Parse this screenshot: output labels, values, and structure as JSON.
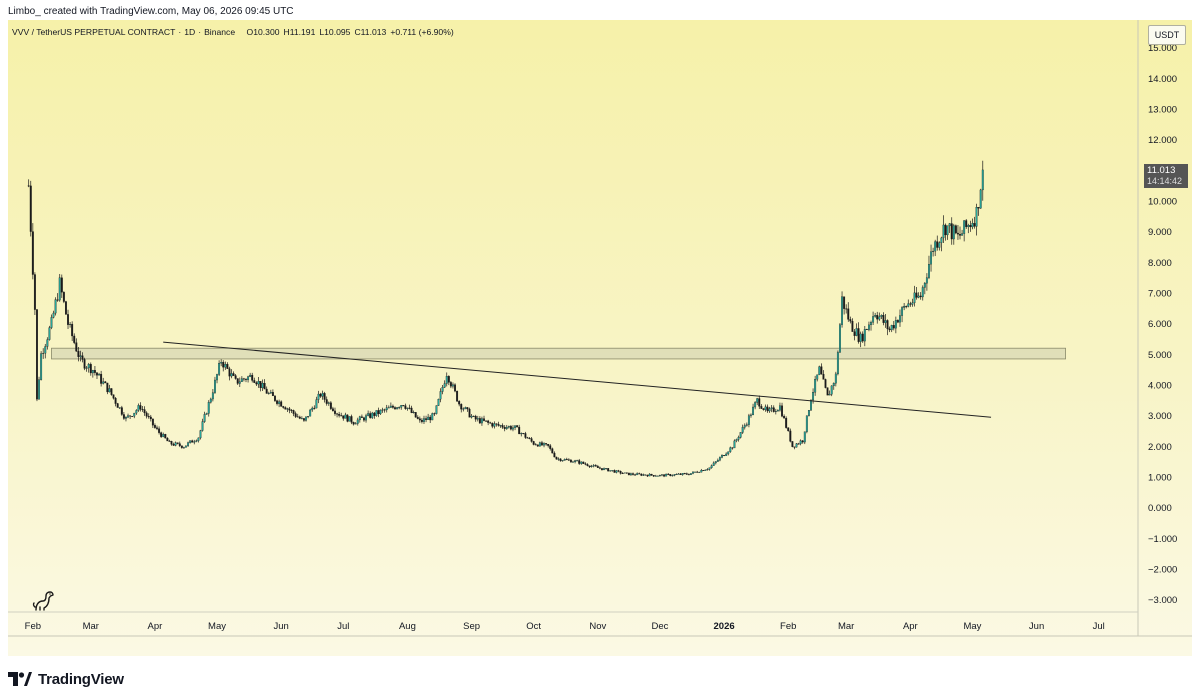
{
  "header": {
    "attribution": "Limbo_ created with TradingView.com, May 06, 2026 09:45 UTC"
  },
  "symbol_line": {
    "name": "VVV / TetherUS PERPETUAL CONTRACT",
    "interval": "1D",
    "exchange": "Binance",
    "open": "O10.300",
    "high": "H11.191",
    "low": "L10.095",
    "close": "C11.013",
    "change": "+0.711 (+6.90%)"
  },
  "currency": "USDT",
  "price_tag": {
    "price": "11.013",
    "countdown": "14:14:42"
  },
  "footer": {
    "brand": "TradingView"
  },
  "colors": {
    "up_candle": "#26a69a",
    "candle_outline": "#1a1a1a",
    "trendline": "#222222",
    "zone_fill": "#d8d8b4",
    "zone_stroke": "#8a8a6a",
    "text": "#131722"
  },
  "icons": {
    "mascot": "dinosaur-icon",
    "logo": "tradingview-logo-icon"
  },
  "chart_data": {
    "type": "candlestick",
    "title": "",
    "xlabel": "",
    "ylabel": "",
    "ylim": [
      -3.4,
      15.9
    ],
    "y_ticks": [
      15,
      14,
      13,
      12,
      11,
      10,
      9,
      8,
      7,
      6,
      5,
      4,
      3,
      2,
      1,
      0,
      -1,
      -2,
      -3
    ],
    "y_tick_labels": [
      "15.000",
      "14.000",
      "13.000",
      "12.000",
      "11.000",
      "10.000",
      "9.000",
      "8.000",
      "7.000",
      "6.000",
      "5.000",
      "4.000",
      "3.000",
      "2.000",
      "1.000",
      "0.000",
      "−1.000",
      "−2.000",
      "−3.000"
    ],
    "x_range": [
      "2025-01-20",
      "2026-07-20"
    ],
    "x_ticks": [
      {
        "label": "Feb",
        "date": "2025-02-01"
      },
      {
        "label": "Mar",
        "date": "2025-03-01"
      },
      {
        "label": "Apr",
        "date": "2025-04-01"
      },
      {
        "label": "May",
        "date": "2025-05-01"
      },
      {
        "label": "Jun",
        "date": "2025-06-01"
      },
      {
        "label": "Jul",
        "date": "2025-07-01"
      },
      {
        "label": "Aug",
        "date": "2025-08-01"
      },
      {
        "label": "Sep",
        "date": "2025-09-01"
      },
      {
        "label": "Oct",
        "date": "2025-10-01"
      },
      {
        "label": "Nov",
        "date": "2025-11-01"
      },
      {
        "label": "Dec",
        "date": "2025-12-01"
      },
      {
        "label": "2026",
        "date": "2026-01-01",
        "bold": true
      },
      {
        "label": "Feb",
        "date": "2026-02-01"
      },
      {
        "label": "Mar",
        "date": "2026-03-01"
      },
      {
        "label": "Apr",
        "date": "2026-04-01"
      },
      {
        "label": "May",
        "date": "2026-05-01"
      },
      {
        "label": "Jun",
        "date": "2026-06-01"
      },
      {
        "label": "Jul",
        "date": "2026-07-01"
      }
    ],
    "grid": false,
    "price_path": [
      {
        "date": "2025-01-30",
        "price": 10.5
      },
      {
        "date": "2025-02-02",
        "price": 6.5
      },
      {
        "date": "2025-02-03",
        "price": 3.5
      },
      {
        "date": "2025-02-05",
        "price": 5.0
      },
      {
        "date": "2025-02-10",
        "price": 6.0
      },
      {
        "date": "2025-02-14",
        "price": 7.3
      },
      {
        "date": "2025-02-18",
        "price": 6.0
      },
      {
        "date": "2025-02-24",
        "price": 4.8
      },
      {
        "date": "2025-03-02",
        "price": 4.5
      },
      {
        "date": "2025-03-10",
        "price": 3.8
      },
      {
        "date": "2025-03-18",
        "price": 2.9
      },
      {
        "date": "2025-03-25",
        "price": 3.3
      },
      {
        "date": "2025-04-01",
        "price": 2.6
      },
      {
        "date": "2025-04-08",
        "price": 2.1
      },
      {
        "date": "2025-04-15",
        "price": 2.0
      },
      {
        "date": "2025-04-22",
        "price": 2.3
      },
      {
        "date": "2025-04-28",
        "price": 3.6
      },
      {
        "date": "2025-05-03",
        "price": 4.8
      },
      {
        "date": "2025-05-10",
        "price": 4.1
      },
      {
        "date": "2025-05-18",
        "price": 4.3
      },
      {
        "date": "2025-05-26",
        "price": 3.7
      },
      {
        "date": "2025-06-03",
        "price": 3.3
      },
      {
        "date": "2025-06-12",
        "price": 2.8
      },
      {
        "date": "2025-06-20",
        "price": 3.7
      },
      {
        "date": "2025-06-28",
        "price": 3.1
      },
      {
        "date": "2025-07-06",
        "price": 2.8
      },
      {
        "date": "2025-07-14",
        "price": 3.0
      },
      {
        "date": "2025-07-22",
        "price": 3.2
      },
      {
        "date": "2025-07-30",
        "price": 3.4
      },
      {
        "date": "2025-08-07",
        "price": 2.8
      },
      {
        "date": "2025-08-14",
        "price": 3.0
      },
      {
        "date": "2025-08-20",
        "price": 4.4
      },
      {
        "date": "2025-08-26",
        "price": 3.4
      },
      {
        "date": "2025-09-02",
        "price": 2.9
      },
      {
        "date": "2025-09-12",
        "price": 2.7
      },
      {
        "date": "2025-09-22",
        "price": 2.6
      },
      {
        "date": "2025-10-01",
        "price": 2.1
      },
      {
        "date": "2025-10-08",
        "price": 2.0
      },
      {
        "date": "2025-10-12",
        "price": 1.6
      },
      {
        "date": "2025-10-22",
        "price": 1.5
      },
      {
        "date": "2025-11-01",
        "price": 1.3
      },
      {
        "date": "2025-11-15",
        "price": 1.1
      },
      {
        "date": "2025-12-01",
        "price": 1.05
      },
      {
        "date": "2025-12-15",
        "price": 1.1
      },
      {
        "date": "2025-12-25",
        "price": 1.3
      },
      {
        "date": "2026-01-05",
        "price": 2.0
      },
      {
        "date": "2026-01-12",
        "price": 2.8
      },
      {
        "date": "2026-01-17",
        "price": 3.5
      },
      {
        "date": "2026-01-22",
        "price": 3.1
      },
      {
        "date": "2026-01-28",
        "price": 3.3
      },
      {
        "date": "2026-02-03",
        "price": 2.0
      },
      {
        "date": "2026-02-08",
        "price": 2.2
      },
      {
        "date": "2026-02-12",
        "price": 3.6
      },
      {
        "date": "2026-02-16",
        "price": 4.5
      },
      {
        "date": "2026-02-20",
        "price": 3.6
      },
      {
        "date": "2026-02-24",
        "price": 4.3
      },
      {
        "date": "2026-02-27",
        "price": 6.8
      },
      {
        "date": "2026-03-03",
        "price": 6.0
      },
      {
        "date": "2026-03-08",
        "price": 5.5
      },
      {
        "date": "2026-03-15",
        "price": 6.4
      },
      {
        "date": "2026-03-22",
        "price": 5.8
      },
      {
        "date": "2026-03-30",
        "price": 6.6
      },
      {
        "date": "2026-04-06",
        "price": 6.9
      },
      {
        "date": "2026-04-12",
        "price": 8.5
      },
      {
        "date": "2026-04-18",
        "price": 9.2
      },
      {
        "date": "2026-04-24",
        "price": 8.8
      },
      {
        "date": "2026-04-30",
        "price": 9.3
      },
      {
        "date": "2026-05-03",
        "price": 9.6
      },
      {
        "date": "2026-05-06",
        "price": 11.013
      }
    ],
    "annotations": {
      "trendline": {
        "start": {
          "date": "2025-04-05",
          "price": 5.4
        },
        "end": {
          "date": "2026-05-10",
          "price": 2.95
        }
      },
      "zone": {
        "start_date": "2025-02-10",
        "end_date": "2026-06-15",
        "low": 4.85,
        "high": 5.2
      }
    },
    "last_price": 11.013
  }
}
